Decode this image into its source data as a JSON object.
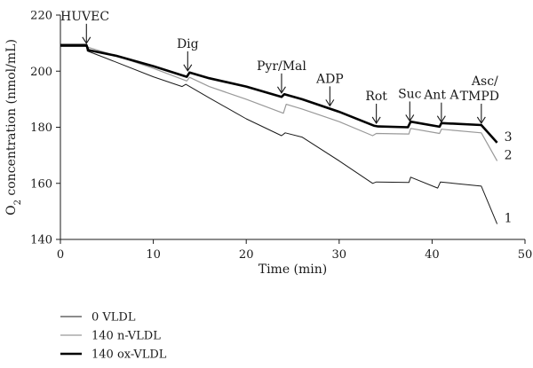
{
  "chart_data": {
    "type": "line",
    "xlabel": "Time (min)",
    "ylabel": "O",
    "ylabel_sub": "2",
    "ylabel_rest": " concentration (nmol/mL)",
    "xlim": [
      0,
      50
    ],
    "ylim": [
      140,
      220
    ],
    "xticks": [
      0,
      10,
      20,
      30,
      40,
      50
    ],
    "yticks": [
      140,
      160,
      180,
      200,
      220
    ],
    "grid": false,
    "legend_position": "bottom-left",
    "annotations": [
      {
        "label": "HUVEC",
        "x": 2.8,
        "y": 209.3
      },
      {
        "label": "Dig",
        "x": 13.7,
        "y": 199.5
      },
      {
        "label": "Pyr/Mal",
        "x": 23.8,
        "y": 191.6
      },
      {
        "label": "ADP",
        "x": 29.0,
        "y": 187.0
      },
      {
        "label": "Rot",
        "x": 34.0,
        "y": 180.8
      },
      {
        "label": "Suc",
        "x": 37.6,
        "y": 181.6
      },
      {
        "label": "Ant A",
        "x": 41.0,
        "y": 181.2
      },
      {
        "label": "Asc/",
        "label2": "TMPD",
        "x": 45.3,
        "y": 180.8
      }
    ],
    "series": [
      {
        "name": "0 VLDL",
        "end_label": "1",
        "color": "#1a1a1a",
        "x": [
          0,
          2.8,
          2.9,
          5,
          10,
          13.1,
          13.5,
          16,
          20,
          23.8,
          24.2,
          26,
          30,
          33.6,
          34.0,
          37.5,
          37.7,
          40.6,
          40.9,
          45.3,
          47
        ],
        "y": [
          208.8,
          208.8,
          207.2,
          204.5,
          198.0,
          194.5,
          195.3,
          190.5,
          183.0,
          177.0,
          178.0,
          176.5,
          168.0,
          160.0,
          160.5,
          160.3,
          162.2,
          158.3,
          160.5,
          159.0,
          145.5
        ]
      },
      {
        "name": "140 n-VLDL",
        "end_label": "2",
        "color": "#999999",
        "x": [
          0,
          2.8,
          3.0,
          6,
          10,
          13.6,
          13.9,
          16,
          20,
          24.0,
          24.3,
          26,
          30,
          33.6,
          34.0,
          37.5,
          37.7,
          40.8,
          41.0,
          45.3,
          47
        ],
        "y": [
          209.2,
          209.2,
          208.5,
          205.5,
          201.0,
          196.5,
          197.8,
          194.5,
          190.0,
          185.0,
          188.2,
          186.5,
          182.0,
          177.0,
          177.8,
          177.6,
          179.6,
          177.8,
          179.3,
          178.0,
          168.0
        ]
      },
      {
        "name": "140 ox-VLDL",
        "end_label": "3",
        "color": "#000000",
        "x": [
          0,
          2.8,
          3.0,
          6,
          10,
          13.6,
          13.9,
          16,
          20,
          23.8,
          24.1,
          26,
          30,
          33.8,
          34.2,
          37.4,
          37.7,
          40.8,
          41.0,
          45.3,
          47
        ],
        "y": [
          209.3,
          209.3,
          207.5,
          205.5,
          201.8,
          198.0,
          199.5,
          197.5,
          194.5,
          190.8,
          191.8,
          190.0,
          185.5,
          180.5,
          180.3,
          180.0,
          182.0,
          180.2,
          181.5,
          180.8,
          174.5
        ]
      }
    ]
  }
}
